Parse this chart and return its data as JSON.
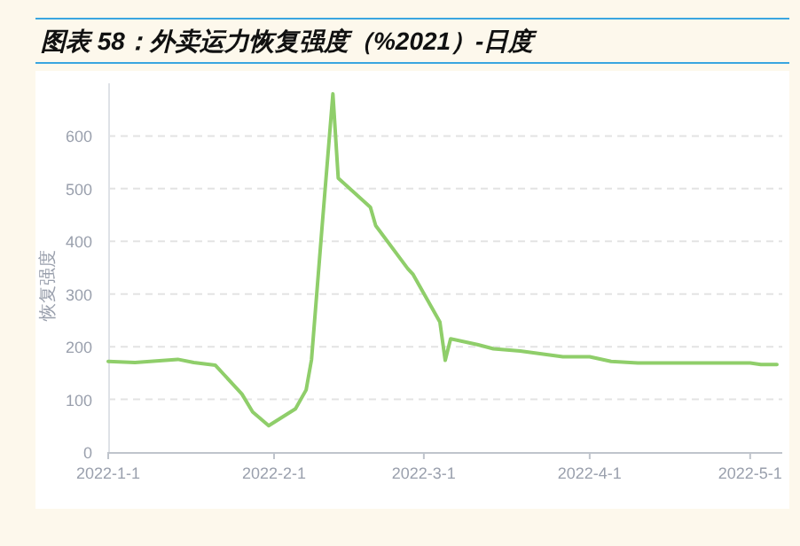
{
  "chart_data": {
    "type": "line",
    "title": "图表 58：外卖运力恢复强度（%2021）-日度",
    "ylabel": "恢复强度",
    "x": [
      "2022-01-01",
      "2022-01-06",
      "2022-01-14",
      "2022-01-17",
      "2022-01-21",
      "2022-01-26",
      "2022-01-28",
      "2022-01-31",
      "2022-02-05",
      "2022-02-07",
      "2022-02-08",
      "2022-02-10",
      "2022-02-12",
      "2022-02-13",
      "2022-02-19",
      "2022-02-20",
      "2022-02-26",
      "2022-02-27",
      "2022-03-04",
      "2022-03-05",
      "2022-03-06",
      "2022-03-11",
      "2022-03-14",
      "2022-03-19",
      "2022-03-27",
      "2022-04-01",
      "2022-04-05",
      "2022-04-10",
      "2022-05-01",
      "2022-05-03",
      "2022-05-06"
    ],
    "series": [
      {
        "color": "#8fce6a",
        "values": [
          172,
          170,
          176,
          170,
          165,
          110,
          76,
          50,
          82,
          118,
          175,
          430,
          680,
          520,
          465,
          430,
          348,
          337,
          247,
          174,
          215,
          204,
          196,
          192,
          181,
          181,
          172,
          169,
          169,
          166,
          166
        ]
      }
    ],
    "xlim": [
      "2022-01-01",
      "2022-05-07"
    ],
    "xticks": [
      {
        "value": "2022-01-01",
        "label": "2022-1-1"
      },
      {
        "value": "2022-02-01",
        "label": "2022-2-1"
      },
      {
        "value": "2022-03-01",
        "label": "2022-3-1"
      },
      {
        "value": "2022-04-01",
        "label": "2022-4-1"
      },
      {
        "value": "2022-05-01",
        "label": "2022-5-1"
      }
    ],
    "ylim": [
      0,
      700
    ],
    "yticks": [
      0,
      100,
      200,
      300,
      400,
      500,
      600
    ],
    "grid": "y",
    "marker": "none",
    "line_style": "solid"
  }
}
